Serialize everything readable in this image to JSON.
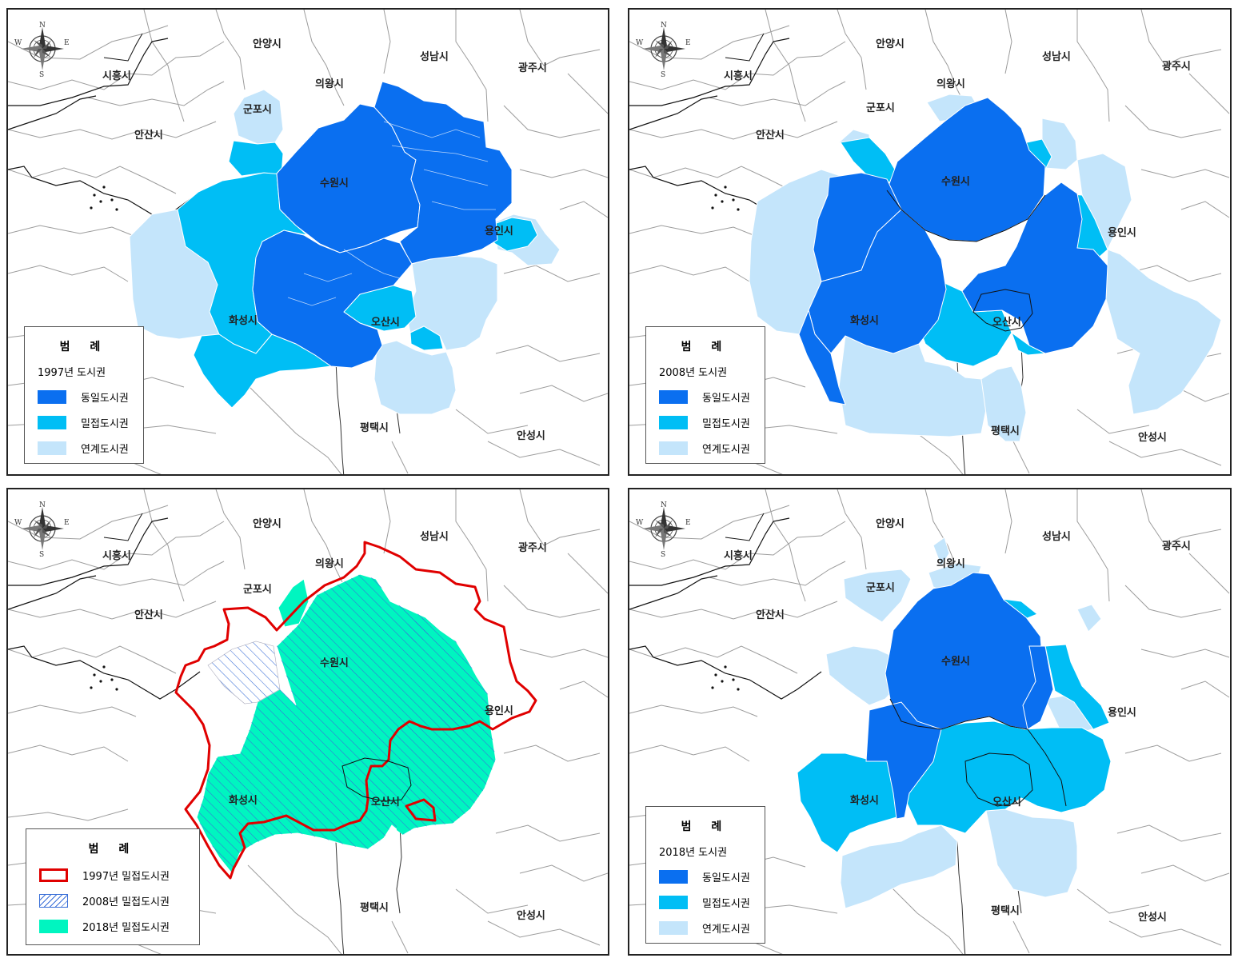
{
  "city_labels": {
    "anyang": "안양시",
    "seongnam": "성남시",
    "gwangju": "광주시",
    "siheung": "시흥시",
    "uiwang": "의왕시",
    "gunpo": "군포시",
    "ansan": "안산시",
    "suwon": "수원시",
    "yongin": "용인시",
    "hwaseong": "화성시",
    "osan": "오산시",
    "pyeongtaek": "평택시",
    "anseong": "안성시"
  },
  "compass": {
    "n": "N",
    "s": "S",
    "e": "E",
    "w": "W"
  },
  "panels": {
    "p1997": {
      "legend_title": "범 례",
      "legend_sub": "1997년 도시권",
      "items": [
        "동일도시권",
        "밀접도시권",
        "연계도시권"
      ]
    },
    "p2008": {
      "legend_title": "범 례",
      "legend_sub": "2008년 도시권",
      "items": [
        "동일도시권",
        "밀접도시권",
        "연계도시권"
      ]
    },
    "pchange": {
      "legend_title": "범 례",
      "items": [
        "1997년 밀접도시권",
        "2008년 밀접도시권",
        "2018년 밀접도시권"
      ]
    },
    "p2018": {
      "legend_title": "범 례",
      "legend_sub": "2018년 도시권",
      "items": [
        "동일도시권",
        "밀접도시권",
        "연계도시권"
      ]
    }
  },
  "colors": {
    "same": "#0a6ff0",
    "close": "#00bef5",
    "linked": "#c4e5fb",
    "red": "#e00000",
    "teal": "#00f5c0",
    "hatch": "#3a6fd8",
    "border": "#9c9c9c"
  }
}
